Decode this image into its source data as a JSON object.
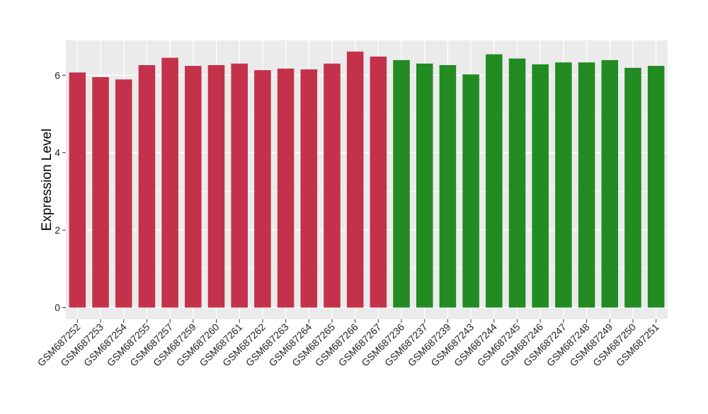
{
  "chart_data": {
    "type": "bar",
    "title": "",
    "xlabel": "",
    "ylabel": "Expression Level",
    "ylim": [
      -0.3,
      6.9
    ],
    "yticks": [
      0,
      2,
      4,
      6
    ],
    "grid": true,
    "legend": "none",
    "categories": [
      "GSM687252",
      "GSM687253",
      "GSM687254",
      "GSM687255",
      "GSM687257",
      "GSM687259",
      "GSM687260",
      "GSM687261",
      "GSM687262",
      "GSM687263",
      "GSM687264",
      "GSM687265",
      "GSM687266",
      "GSM687267",
      "GSM687236",
      "GSM687237",
      "GSM687239",
      "GSM687243",
      "GSM687244",
      "GSM687245",
      "GSM687246",
      "GSM687247",
      "GSM687248",
      "GSM687249",
      "GSM687250",
      "GSM687251"
    ],
    "values": [
      6.07,
      5.95,
      5.89,
      6.26,
      6.45,
      6.24,
      6.26,
      6.3,
      6.13,
      6.17,
      6.15,
      6.3,
      6.61,
      6.48,
      6.39,
      6.3,
      6.26,
      6.02,
      6.54,
      6.43,
      6.28,
      6.33,
      6.33,
      6.39,
      6.19,
      6.24
    ],
    "bar_colors": [
      "#C4314B",
      "#C4314B",
      "#C4314B",
      "#C4314B",
      "#C4314B",
      "#C4314B",
      "#C4314B",
      "#C4314B",
      "#C4314B",
      "#C4314B",
      "#C4314B",
      "#C4314B",
      "#C4314B",
      "#C4314B",
      "#228B22",
      "#228B22",
      "#228B22",
      "#228B22",
      "#228B22",
      "#228B22",
      "#228B22",
      "#228B22",
      "#228B22",
      "#228B22",
      "#228B22",
      "#228B22"
    ],
    "panel_background": "#EBEBEB",
    "grid_color": "#FFFFFF"
  }
}
